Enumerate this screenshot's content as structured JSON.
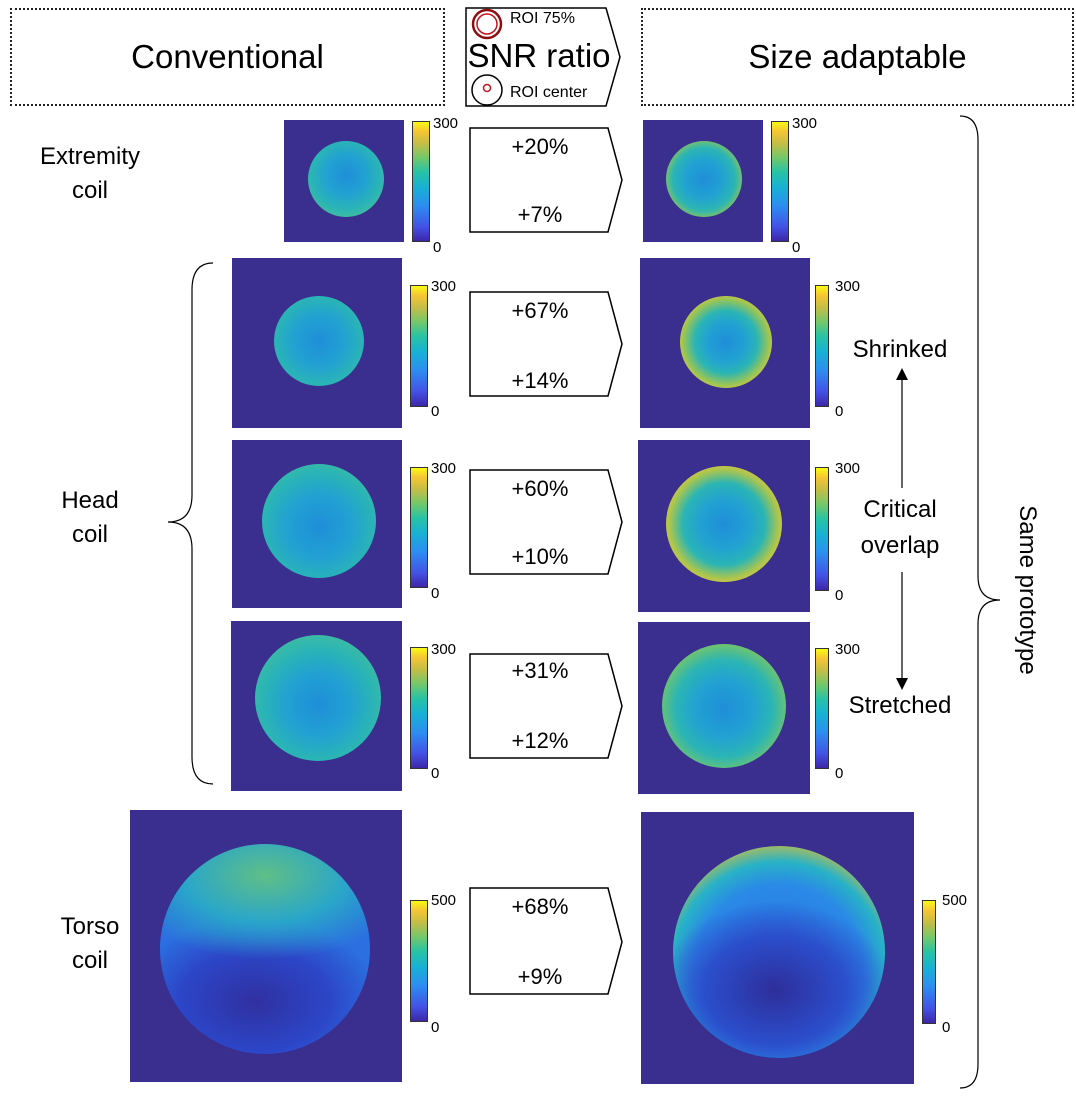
{
  "header": {
    "left_title": "Conventional",
    "right_title": "Size adaptable",
    "center_title": "SNR ratio",
    "roi_75_label": "ROI 75%",
    "roi_center_label": "ROI center"
  },
  "row_labels": {
    "extremity": [
      "Extremity",
      "coil"
    ],
    "head": [
      "Head",
      "coil"
    ],
    "torso": [
      "Torso",
      "coil"
    ]
  },
  "side_labels": {
    "shrinked": "Shrinked",
    "critical": [
      "Critical",
      "overlap"
    ],
    "stretched": "Stretched",
    "same_prototype": "Same prototype"
  },
  "rows": [
    {
      "ratio_75": "+20%",
      "ratio_center": "+7%",
      "cbar_max": "300",
      "cbar_min": "0"
    },
    {
      "ratio_75": "+67%",
      "ratio_center": "+14%",
      "cbar_max": "300",
      "cbar_min": "0"
    },
    {
      "ratio_75": "+60%",
      "ratio_center": "+10%",
      "cbar_max": "300",
      "cbar_min": "0"
    },
    {
      "ratio_75": "+31%",
      "ratio_center": "+12%",
      "cbar_max": "300",
      "cbar_min": "0"
    },
    {
      "ratio_75": "+68%",
      "ratio_center": "+9%",
      "cbar_max": "500",
      "cbar_min": "0"
    }
  ],
  "colors": {
    "background_map": "#3a2e8f",
    "roi_ring": "#c0141b"
  }
}
